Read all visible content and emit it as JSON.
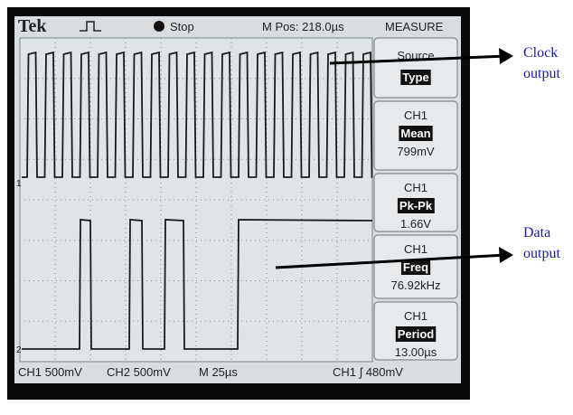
{
  "header": {
    "brand": "Tek",
    "status": "Stop",
    "position": "M Pos: 218.0µs",
    "menu_title": "MEASURE"
  },
  "menu": [
    {
      "top": "Source",
      "key": "Type"
    },
    {
      "top": "CH1",
      "key": "Mean",
      "value": "799mV"
    },
    {
      "top": "CH1",
      "key": "Pk-Pk",
      "value": "1.66V"
    },
    {
      "top": "CH1",
      "key": "Freq",
      "value": "76.92kHz"
    },
    {
      "top": "CH1",
      "key": "Period",
      "value": "13.00µs"
    }
  ],
  "channel_markers": [
    "1",
    "2"
  ],
  "footer": [
    "CH1 500mV",
    "CH2 500mV",
    "M 25µs",
    "CH1 ∫ 480mV"
  ],
  "annotations": [
    {
      "lines": [
        "Clock",
        "output"
      ]
    },
    {
      "lines": [
        "Data",
        "output"
      ]
    }
  ]
}
